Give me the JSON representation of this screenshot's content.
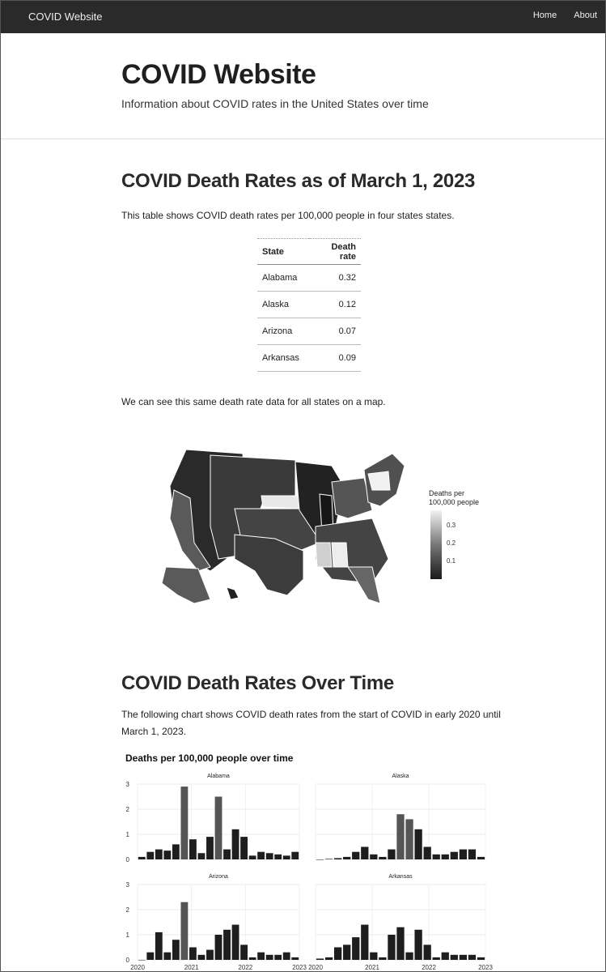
{
  "navbar": {
    "brand": "COVID Website",
    "links": [
      "Home",
      "About"
    ]
  },
  "hero": {
    "title": "COVID Website",
    "subtitle": "Information about COVID rates in the United States over time"
  },
  "section1": {
    "heading": "COVID Death Rates as of March 1, 2023",
    "intro": "This table shows COVID death rates per 100,000 people in four states states.",
    "table": {
      "headers": [
        "State",
        "Death rate"
      ],
      "rows": [
        [
          "Alabama",
          "0.32"
        ],
        [
          "Alaska",
          "0.12"
        ],
        [
          "Arizona",
          "0.07"
        ],
        [
          "Arkansas",
          "0.09"
        ]
      ]
    },
    "map_caption": "We can see this same death rate data for all states on a map.",
    "map": {
      "legend_title": [
        "Deaths per",
        "100,000 people"
      ],
      "legend_ticks": [
        0.3,
        0.2,
        0.1
      ],
      "color_low": "#1a1a1a",
      "color_high": "#f2f2f2"
    }
  },
  "section2": {
    "heading": "COVID Death Rates Over Time",
    "intro": "The following chart shows COVID death rates from the start of COVID in early 2020 until March 1, 2023."
  },
  "chart_data": {
    "type": "bar",
    "title": "Deaths per 100,000 people over time",
    "ylim": [
      0,
      3
    ],
    "y_ticks": [
      0,
      1,
      2,
      3
    ],
    "x_ticks": [
      "2020",
      "2021",
      "2022",
      "2023"
    ],
    "x": [
      "2020-03",
      "2020-05",
      "2020-07",
      "2020-09",
      "2020-11",
      "2021-01",
      "2021-03",
      "2021-05",
      "2021-07",
      "2021-09",
      "2021-11",
      "2022-01",
      "2022-03",
      "2022-05",
      "2022-07",
      "2022-09",
      "2022-11",
      "2023-01",
      "2023-03"
    ],
    "series": [
      {
        "name": "Alabama",
        "values": [
          0.1,
          0.3,
          0.4,
          0.35,
          0.6,
          2.9,
          0.8,
          0.25,
          0.9,
          2.5,
          0.4,
          1.2,
          0.9,
          0.15,
          0.3,
          0.25,
          0.2,
          0.15,
          0.3
        ]
      },
      {
        "name": "Alaska",
        "values": [
          0,
          0.02,
          0.05,
          0.1,
          0.3,
          0.5,
          0.2,
          0.1,
          0.4,
          1.8,
          1.6,
          1.2,
          0.5,
          0.2,
          0.2,
          0.3,
          0.4,
          0.4,
          0.1
        ]
      },
      {
        "name": "Arizona",
        "values": [
          0,
          0.3,
          1.1,
          0.3,
          0.8,
          2.3,
          0.5,
          0.2,
          0.4,
          1.0,
          1.2,
          1.4,
          0.6,
          0.1,
          0.3,
          0.2,
          0.2,
          0.3,
          0.1
        ]
      },
      {
        "name": "Arkansas",
        "values": [
          0.05,
          0.1,
          0.5,
          0.6,
          0.9,
          1.4,
          0.3,
          0.1,
          1.0,
          1.3,
          0.3,
          1.2,
          0.6,
          0.1,
          0.3,
          0.2,
          0.2,
          0.2,
          0.1
        ]
      }
    ]
  }
}
